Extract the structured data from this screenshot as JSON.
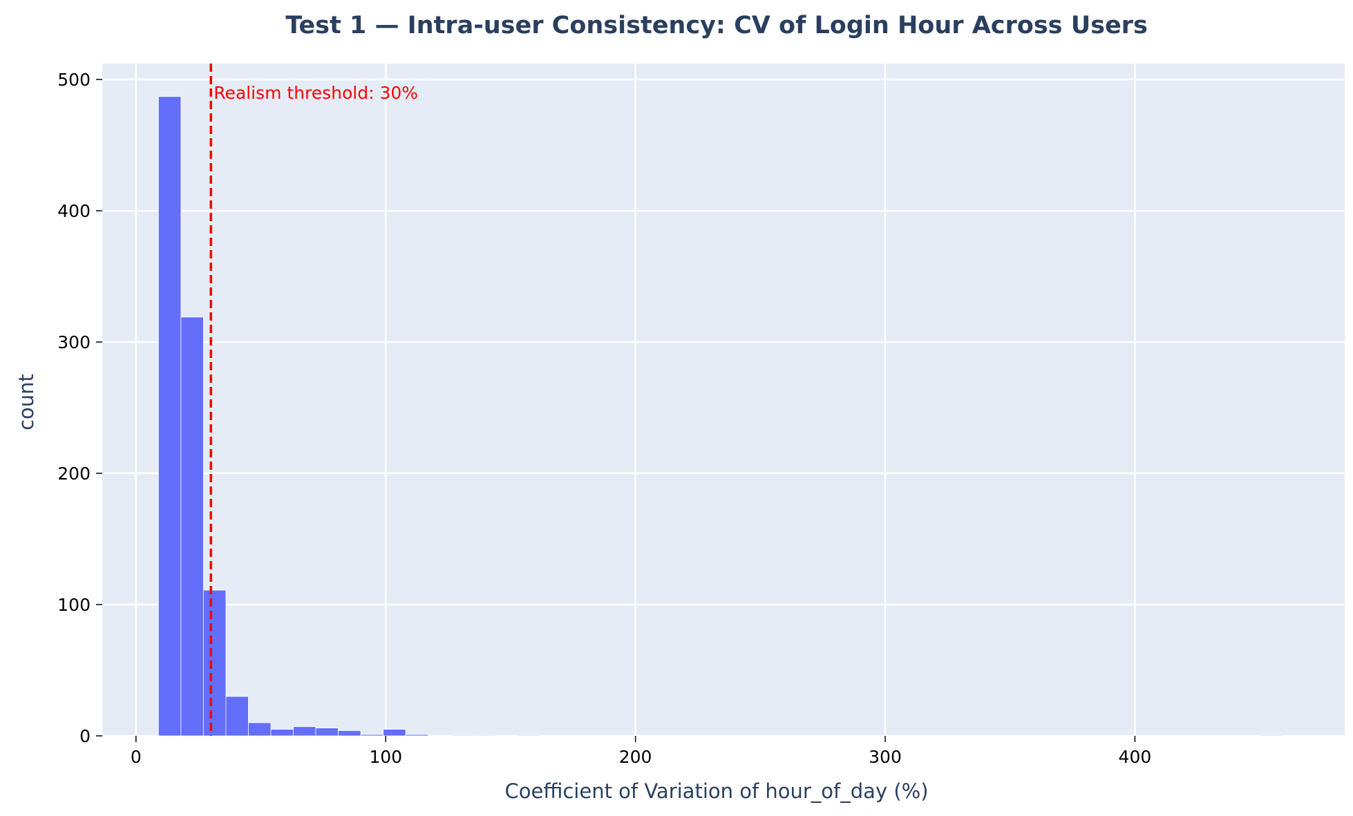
{
  "chart_data": {
    "type": "bar",
    "title": "Test 1 — Intra-user Consistency: CV of Login Hour Across Users",
    "xlabel": "Coefficient of Variation of hour_of_day (%)",
    "ylabel": "count",
    "xlim": [
      -13.5,
      484
    ],
    "ylim": [
      0,
      500
    ],
    "x_ticks": [
      0,
      100,
      200,
      300,
      400
    ],
    "y_ticks": [
      0,
      100,
      200,
      300,
      400,
      500
    ],
    "grid": true,
    "legend": "none",
    "bin_width": 9,
    "bins": [
      {
        "x0": 9,
        "x1": 18,
        "count": 487
      },
      {
        "x0": 18,
        "x1": 27,
        "count": 319
      },
      {
        "x0": 27,
        "x1": 36,
        "count": 111
      },
      {
        "x0": 36,
        "x1": 45,
        "count": 30
      },
      {
        "x0": 45,
        "x1": 54,
        "count": 10
      },
      {
        "x0": 54,
        "x1": 63,
        "count": 5
      },
      {
        "x0": 63,
        "x1": 72,
        "count": 7
      },
      {
        "x0": 72,
        "x1": 81,
        "count": 6
      },
      {
        "x0": 81,
        "x1": 90,
        "count": 4
      },
      {
        "x0": 90,
        "x1": 99,
        "count": 1
      },
      {
        "x0": 99,
        "x1": 108,
        "count": 5
      },
      {
        "x0": 108,
        "x1": 117,
        "count": 1
      },
      {
        "x0": 126,
        "x1": 135,
        "count": 0.5
      },
      {
        "x0": 135,
        "x1": 144,
        "count": 0.5
      },
      {
        "x0": 153,
        "x1": 162,
        "count": 0.5
      },
      {
        "x0": 450,
        "x1": 459,
        "count": 0.5
      }
    ],
    "threshold": {
      "x": 30,
      "label": "Realism threshold: 30%",
      "color": "#ff0000",
      "style": "dashed"
    },
    "colors": {
      "bar": "#636efa",
      "plot_bg": "#e5ecf6",
      "grid": "#ffffff",
      "title": "#2a3f5f",
      "threshold": "#ff0000"
    }
  }
}
